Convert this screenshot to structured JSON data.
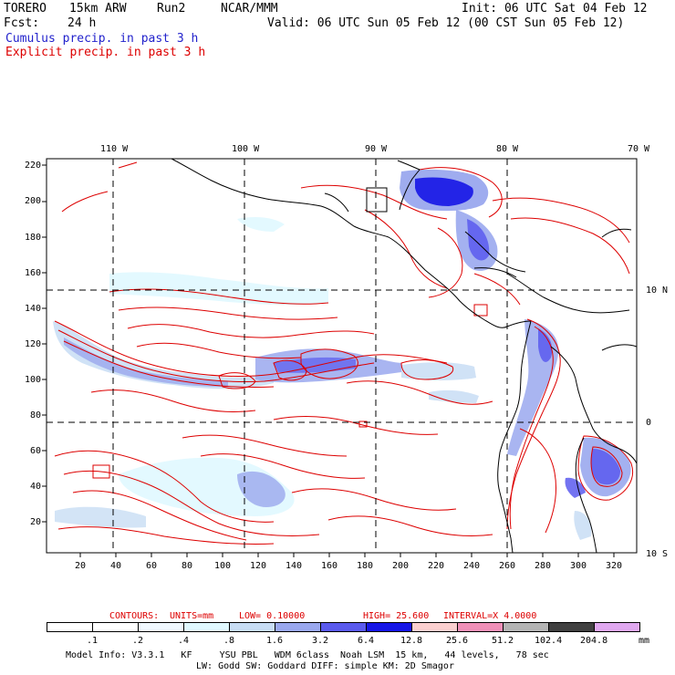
{
  "header": {
    "model": "TORERO",
    "resolution": "15km ARW",
    "run": "Run2",
    "org": "NCAR/MMM",
    "init": "Init: 06 UTC Sat 04 Feb 12",
    "fcst_label": "Fcst:",
    "fcst_value": "24 h",
    "valid": "Valid: 06 UTC Sun 05 Feb 12 (00 CST Sun 05 Feb 12)",
    "cumulus_label": "Cumulus precip. in past 3 h",
    "explicit_label": "Explicit precip. in past 3 h"
  },
  "colors": {
    "cumulus_text": "#2222cc",
    "explicit_text": "#dd0000",
    "contour": "#dd0000",
    "coast": "#000000",
    "grid": "#000000"
  },
  "map": {
    "lon_labels": [
      "110 W",
      "100 W",
      "90 W",
      "80 W",
      "70 W"
    ],
    "lat_labels": [
      "10 N",
      "0",
      "10 S"
    ],
    "y_ticks": [
      "220",
      "200",
      "180",
      "160",
      "140",
      "120",
      "100",
      "80",
      "60",
      "40",
      "20"
    ],
    "x_ticks": [
      "20",
      "40",
      "60",
      "80",
      "100",
      "120",
      "140",
      "160",
      "180",
      "200",
      "220",
      "240",
      "260",
      "280",
      "300",
      "320"
    ]
  },
  "contours": {
    "label": "CONTOURS:",
    "units": "UNITS=mm",
    "low": "LOW= 0.10000",
    "high": "HIGH= 25.600",
    "interval": "INTERVAL=X 4.0000"
  },
  "colorbar": {
    "labels": [
      ".1",
      ".2",
      ".4",
      ".8",
      "1.6",
      "3.2",
      "6.4",
      "12.8",
      "25.6",
      "51.2",
      "102.4",
      "204.8"
    ],
    "colors": [
      "#ffffff",
      "#ffffff",
      "#f0f8ff",
      "#e0f8ff",
      "#c8ddf4",
      "#9aa8ee",
      "#5a5aee",
      "#1515e6",
      "#fbd0d0",
      "#f090b8",
      "#b4b4b4",
      "#404040",
      "#e0a8f0"
    ],
    "unit": "mm"
  },
  "footer": {
    "line1": "Model Info: V3.3.1   KF     YSU PBL   WDM 6class  Noah LSM  15 km,   44 levels,   78 sec",
    "line2": "LW: Godd SW: Goddard DIFF: simple KM: 2D Smagor"
  }
}
